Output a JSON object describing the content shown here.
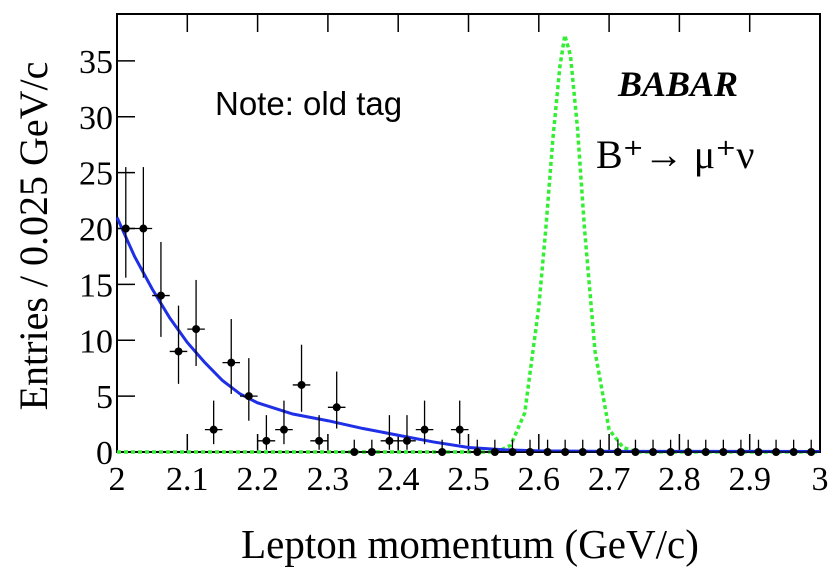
{
  "chart_data": {
    "type": "scatter",
    "ylabel": "Entries / 0.025 GeV/c",
    "xlabel": "Lepton momentum (GeV/c)",
    "annotations": [
      "Note: old tag",
      "BABAR",
      "B⁺→ μ⁺ν"
    ],
    "xlim": [
      2,
      3
    ],
    "ylim": [
      0,
      39.2
    ],
    "xticks": [
      2,
      2.1,
      2.2,
      2.3,
      2.4,
      2.5,
      2.6,
      2.7,
      2.8,
      2.9,
      3
    ],
    "yticks": [
      0,
      5,
      10,
      15,
      20,
      25,
      30,
      35
    ],
    "data": {
      "color": "#000000",
      "xerr": 0.0125,
      "x": [
        2.0125,
        2.0375,
        2.0625,
        2.0875,
        2.1125,
        2.1375,
        2.1625,
        2.1875,
        2.2125,
        2.2375,
        2.2625,
        2.2875,
        2.3125,
        2.3375,
        2.3625,
        2.3875,
        2.4125,
        2.4375,
        2.4625,
        2.4875,
        2.5125,
        2.5375,
        2.5625,
        2.5875,
        2.6125,
        2.6375,
        2.6625,
        2.6875,
        2.7125,
        2.7375,
        2.7625,
        2.7875,
        2.8125,
        2.8375,
        2.8625,
        2.8875,
        2.9125,
        2.9375,
        2.9625,
        2.9875
      ],
      "values": [
        20,
        20,
        14,
        9,
        11,
        2,
        8,
        5,
        1,
        2,
        6,
        1,
        4,
        0,
        0,
        1,
        1,
        2,
        0,
        2,
        0,
        0,
        0,
        0,
        0,
        0,
        0,
        0,
        0,
        0,
        0,
        0,
        0,
        0,
        0,
        0,
        0,
        0,
        0,
        0
      ],
      "errors_high": [
        5.5,
        5.5,
        4.8,
        4.1,
        4.4,
        2.6,
        3.9,
        3.4,
        2.3,
        2.6,
        3.6,
        2.3,
        3.2,
        1.1,
        1.1,
        2.3,
        2.3,
        2.6,
        1.1,
        2.6,
        1.1,
        1.1,
        1.1,
        1.1,
        1.1,
        1.1,
        1.1,
        1.1,
        1.1,
        1.1,
        1.1,
        1.1,
        1.1,
        1.1,
        1.1,
        1.1,
        1.1,
        1.1,
        1.1,
        1.1
      ],
      "errors_low": [
        4.4,
        4.4,
        3.7,
        2.9,
        3.3,
        1.3,
        2.8,
        2.2,
        0.8,
        1.3,
        2.4,
        0.8,
        1.9,
        0,
        0,
        0.8,
        0.8,
        1.3,
        0,
        1.3,
        0,
        0,
        0,
        0,
        0,
        0,
        0,
        0,
        0,
        0,
        0,
        0,
        0,
        0,
        0,
        0,
        0,
        0,
        0,
        0
      ]
    },
    "fit": {
      "color": "#1f2fe6",
      "x": [
        2,
        2.025,
        2.05,
        2.075,
        2.1,
        2.125,
        2.15,
        2.175,
        2.2,
        2.25,
        2.3,
        2.35,
        2.4,
        2.45,
        2.5,
        2.55,
        2.6,
        2.7,
        3
      ],
      "values": [
        21,
        17.5,
        14.6,
        12,
        9.8,
        8,
        6.4,
        5.2,
        4.4,
        3.4,
        2.8,
        2.1,
        1.5,
        0.9,
        0.4,
        0.2,
        0.1,
        0.06,
        0.05
      ]
    },
    "signal": {
      "color": "#33ee33",
      "x": [
        2,
        2.54,
        2.56,
        2.58,
        2.6,
        2.61,
        2.62,
        2.63,
        2.637,
        2.645,
        2.655,
        2.665,
        2.68,
        2.7,
        2.72,
        2.74,
        3
      ],
      "values": [
        0,
        0,
        0.6,
        3.5,
        13,
        20,
        28,
        34.5,
        37.3,
        35.5,
        29,
        20,
        9,
        2,
        0.4,
        0,
        0
      ]
    }
  }
}
